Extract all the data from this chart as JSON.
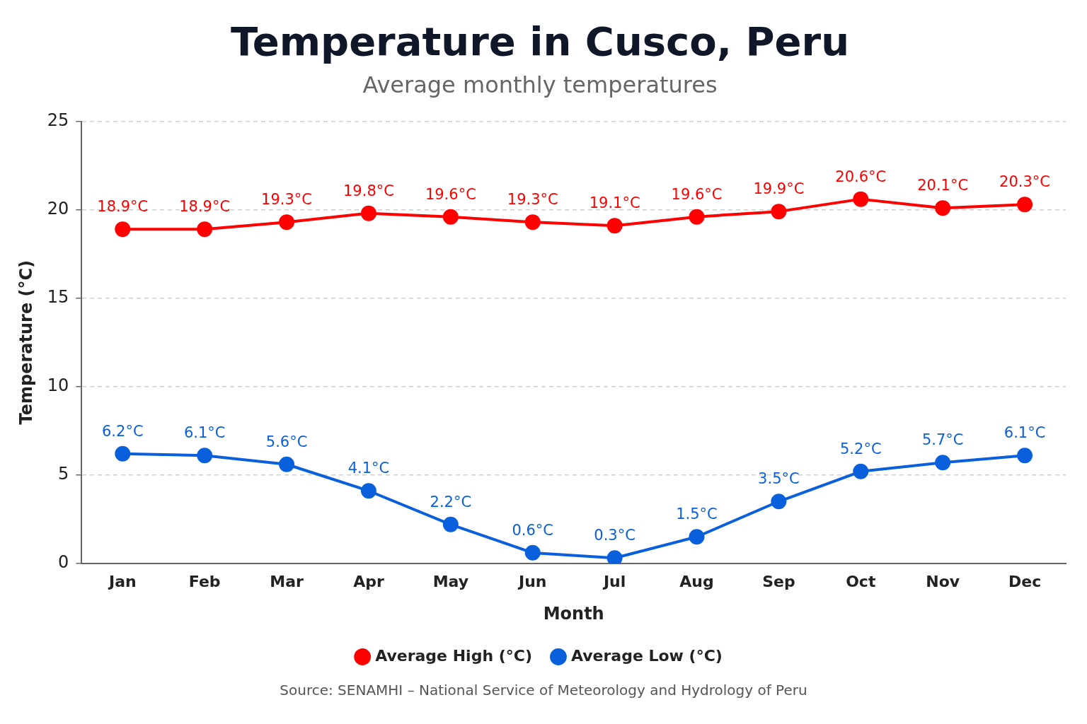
{
  "chart_data": {
    "type": "line",
    "title": "Temperature in Cusco, Peru",
    "subtitle": "Average monthly temperatures",
    "xlabel": "Month",
    "ylabel": "Temperature (°C)",
    "categories": [
      "Jan",
      "Feb",
      "Mar",
      "Apr",
      "May",
      "Jun",
      "Jul",
      "Aug",
      "Sep",
      "Oct",
      "Nov",
      "Dec"
    ],
    "series": [
      {
        "name": "Average High (°C)",
        "color": "#ff0000",
        "values": [
          18.9,
          18.9,
          19.3,
          19.8,
          19.6,
          19.3,
          19.1,
          19.6,
          19.9,
          20.6,
          20.1,
          20.3
        ],
        "value_labels": [
          "18.9°C",
          "18.9°C",
          "19.3°C",
          "19.8°C",
          "19.6°C",
          "19.3°C",
          "19.1°C",
          "19.6°C",
          "19.9°C",
          "20.6°C",
          "20.1°C",
          "20.3°C"
        ]
      },
      {
        "name": "Average Low (°C)",
        "color": "#0a5fdc",
        "values": [
          6.2,
          6.1,
          5.6,
          4.1,
          2.2,
          0.6,
          0.3,
          1.5,
          3.5,
          5.2,
          5.7,
          6.1
        ],
        "value_labels": [
          "6.2°C",
          "6.1°C",
          "5.6°C",
          "4.1°C",
          "2.2°C",
          "0.6°C",
          "0.3°C",
          "1.5°C",
          "3.5°C",
          "5.2°C",
          "5.7°C",
          "6.1°C"
        ]
      }
    ],
    "ylim": [
      0,
      25
    ],
    "yticks": [
      0,
      5,
      10,
      15,
      20,
      25
    ],
    "grid": "y",
    "legend": "bottom",
    "marker": "circle",
    "line_style": "solid",
    "annotations": [
      "Source: SENAMHI – National Service of Meteorology and Hydrology of Peru"
    ]
  }
}
